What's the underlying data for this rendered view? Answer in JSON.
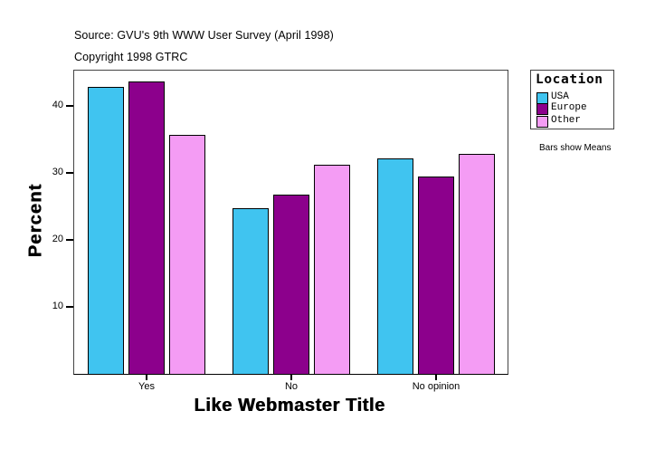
{
  "header": {
    "source": "Source: GVU's 9th WWW User Survey (April 1998)",
    "copyright": "Copyright 1998 GTRC"
  },
  "legend": {
    "title": "Location",
    "items": [
      {
        "label": "USA",
        "color": "#40C4F0"
      },
      {
        "label": "Europe",
        "color": "#8C008C"
      },
      {
        "label": "Other",
        "color": "#F49CF4"
      }
    ]
  },
  "note": "Bars show Means",
  "chart_data": {
    "type": "bar",
    "title": "",
    "xlabel": "Like Webmaster Title",
    "ylabel": "Percent",
    "categories": [
      "Yes",
      "No",
      "No opinion"
    ],
    "series": [
      {
        "name": "USA",
        "color": "#40C4F0",
        "values": [
          42.8,
          24.7,
          32.1
        ]
      },
      {
        "name": "Europe",
        "color": "#8C008C",
        "values": [
          43.6,
          26.8,
          29.4
        ]
      },
      {
        "name": "Other",
        "color": "#F49CF4",
        "values": [
          35.7,
          31.2,
          32.9
        ]
      }
    ],
    "yticks": [
      10,
      20,
      30,
      40
    ],
    "ylim": [
      0,
      45.4
    ],
    "grid": false,
    "legend_position": "right",
    "annotations": [
      "Bars show Means"
    ]
  }
}
